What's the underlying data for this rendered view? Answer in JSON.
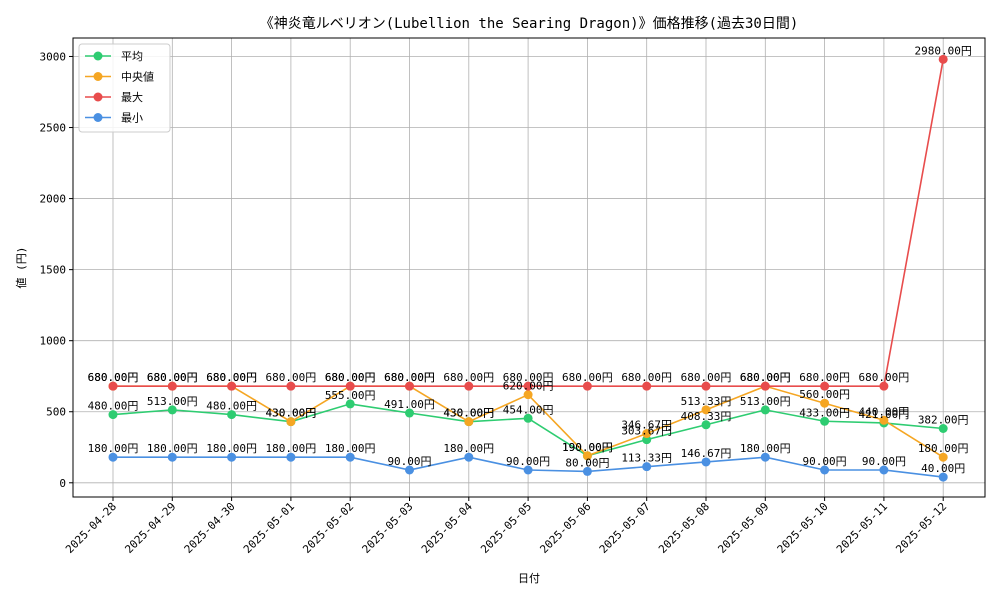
{
  "chart_data": {
    "type": "line",
    "title": "《神炎竜ルベリオン(Lubellion the Searing Dragon)》価格推移(過去30日間)",
    "xlabel": "日付",
    "ylabel": "値 (円)",
    "categories": [
      "2025-04-28",
      "2025-04-29",
      "2025-04-30",
      "2025-05-01",
      "2025-05-02",
      "2025-05-03",
      "2025-05-04",
      "2025-05-05",
      "2025-05-06",
      "2025-05-07",
      "2025-05-08",
      "2025-05-09",
      "2025-05-10",
      "2025-05-11",
      "2025-05-12"
    ],
    "ylim": [
      -100,
      3130
    ],
    "yticks": [
      0,
      500,
      1000,
      1500,
      2000,
      2500,
      3000
    ],
    "grid": true,
    "legend_position": "top-left",
    "unit_suffix": "円",
    "series": [
      {
        "name": "平均",
        "color": "#2ecc71",
        "values": [
          480,
          513,
          480,
          430,
          555,
          491,
          430,
          454,
          190,
          303.67,
          408.33,
          513,
          433,
          421,
          382
        ]
      },
      {
        "name": "中央値",
        "color": "#f5a623",
        "values": [
          680,
          680,
          680,
          430,
          680,
          680,
          430,
          620,
          190,
          346.67,
          513.33,
          680,
          560,
          440,
          180
        ]
      },
      {
        "name": "最大",
        "color": "#e84c4c",
        "values": [
          680,
          680,
          680,
          680,
          680,
          680,
          680,
          680,
          680,
          680,
          680,
          680,
          680,
          680,
          2980
        ]
      },
      {
        "name": "最小",
        "color": "#4a90e2",
        "values": [
          180,
          180,
          180,
          180,
          180,
          90,
          180,
          90,
          80,
          113.33,
          146.67,
          180,
          90,
          90,
          40
        ]
      }
    ]
  }
}
